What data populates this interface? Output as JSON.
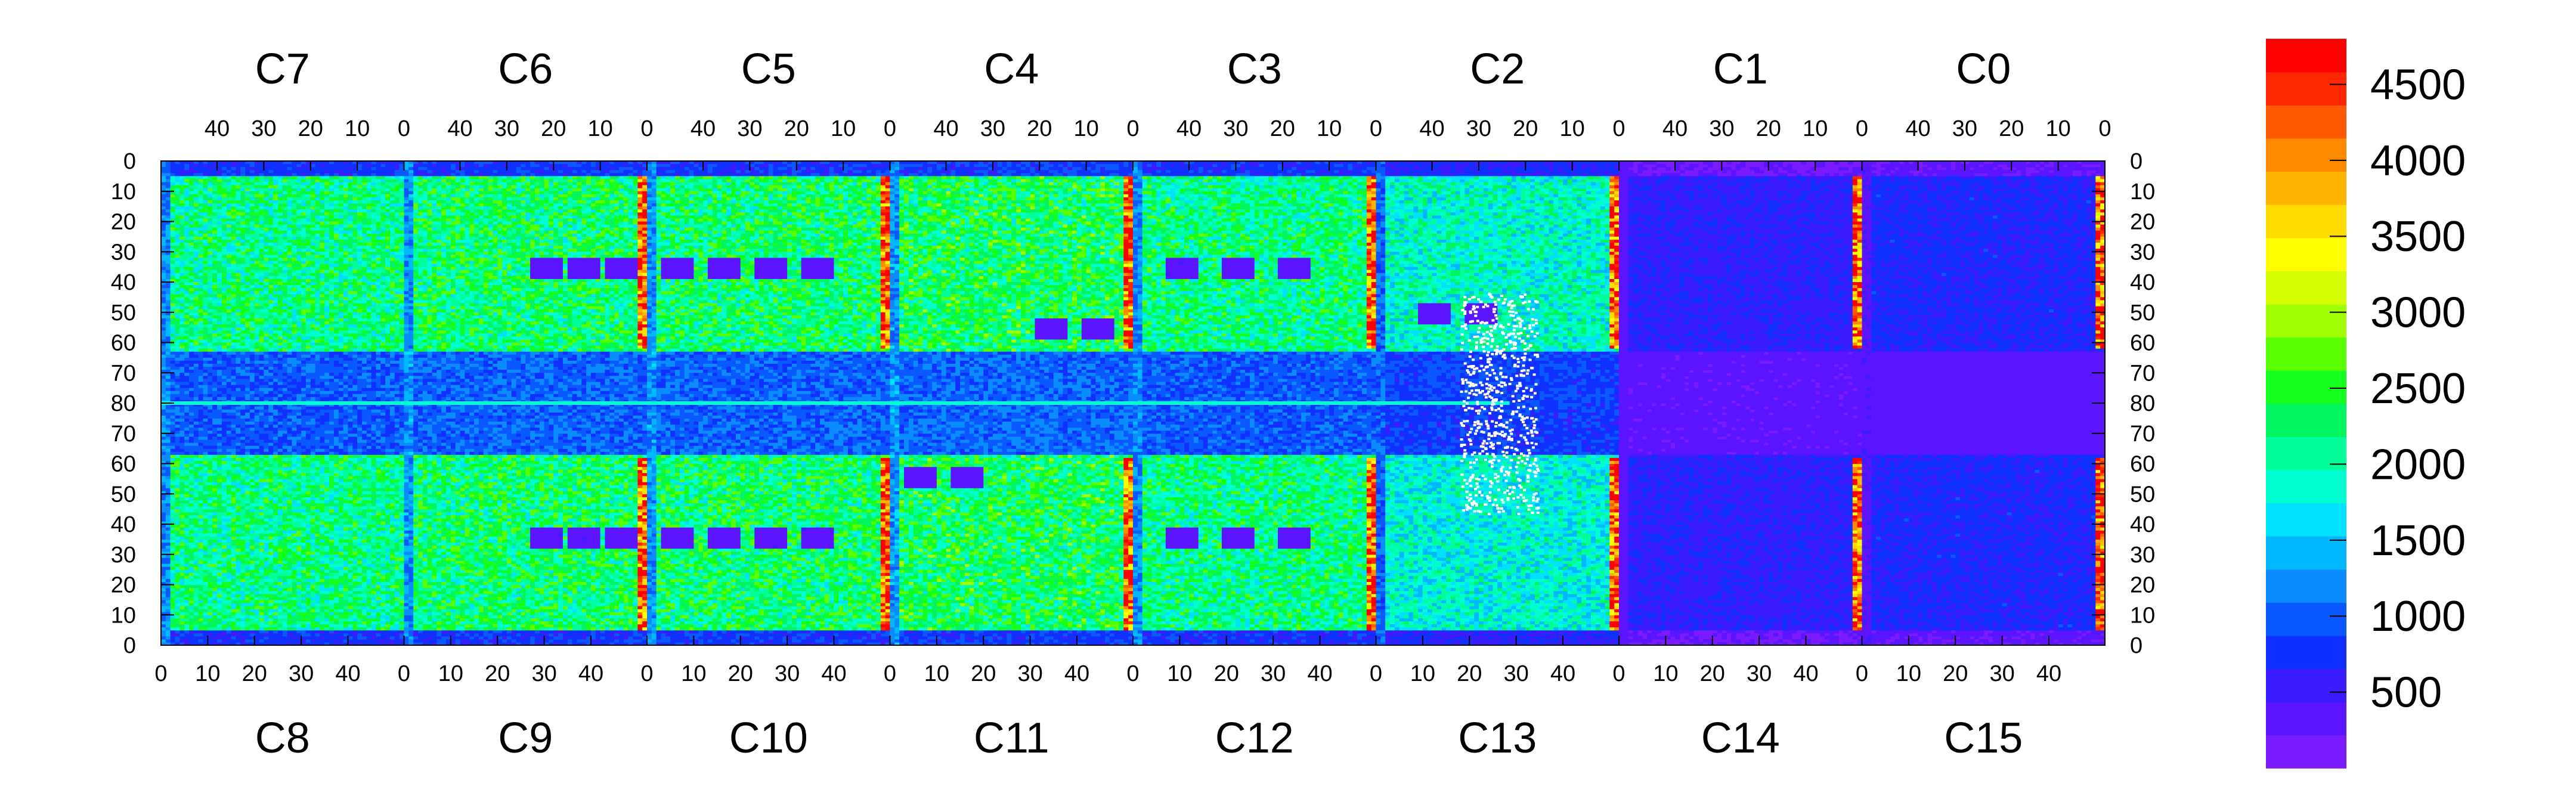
{
  "chart_data": {
    "type": "heatmap",
    "title": "",
    "top_chip_labels": [
      "C7",
      "C6",
      "C5",
      "C4",
      "C3",
      "C2",
      "C1",
      "C0"
    ],
    "bottom_chip_labels": [
      "C8",
      "C9",
      "C10",
      "C11",
      "C12",
      "C13",
      "C14",
      "C15"
    ],
    "top_axis_ticks": [
      "40",
      "30",
      "20",
      "10",
      "0"
    ],
    "bottom_axis_ticks": [
      "0",
      "10",
      "20",
      "30",
      "40"
    ],
    "y_axis_ticks": [
      "0",
      "10",
      "20",
      "30",
      "40",
      "50",
      "60",
      "70",
      "80",
      "70",
      "60",
      "50",
      "40",
      "30",
      "20",
      "10",
      "0"
    ],
    "x_per_chip_range": [
      0,
      52
    ],
    "y_range_top": [
      0,
      80
    ],
    "y_range_bottom": [
      80,
      0
    ],
    "colorbar": {
      "min": 0,
      "max": 4800,
      "tick_labels": [
        "500",
        "1000",
        "1500",
        "2000",
        "2500",
        "3000",
        "3500",
        "4000",
        "4500"
      ],
      "tick_values": [
        500,
        1000,
        1500,
        2000,
        2500,
        3000,
        3500,
        4000,
        4500
      ],
      "colors": [
        "#7a1bff",
        "#5a14ff",
        "#3a1cff",
        "#1030ff",
        "#0a58ff",
        "#0a8cff",
        "#00b8ff",
        "#00e0ff",
        "#00ffd0",
        "#00ff9a",
        "#00f560",
        "#14ff1e",
        "#5aff00",
        "#a0ff00",
        "#d8ff00",
        "#ffff00",
        "#ffdc00",
        "#ffb400",
        "#ff8a00",
        "#ff5a00",
        "#ff2800",
        "#ff0000"
      ]
    },
    "chips": [
      {
        "name": "C7",
        "base": 2150,
        "hot_column_right": false,
        "vacancies": []
      },
      {
        "name": "C6",
        "base": 2250,
        "hot_column_right": true,
        "vacancies": [
          [
            30,
            35
          ],
          [
            38,
            35
          ],
          [
            46,
            35
          ]
        ]
      },
      {
        "name": "C5",
        "base": 2250,
        "hot_column_right": true,
        "vacancies": [
          [
            6,
            35
          ],
          [
            16,
            35
          ],
          [
            26,
            35
          ],
          [
            36,
            35
          ]
        ]
      },
      {
        "name": "C4",
        "base": 2300,
        "hot_column_right": true,
        "vacancies": [
          [
            34,
            55
          ],
          [
            44,
            55
          ]
        ]
      },
      {
        "name": "C3",
        "base": 2150,
        "hot_column_right": true,
        "vacancies": [
          [
            10,
            35
          ],
          [
            22,
            35
          ],
          [
            34,
            35
          ]
        ]
      },
      {
        "name": "C2",
        "base": 1900,
        "hot_column_right": true,
        "vacancies": [
          [
            12,
            50
          ],
          [
            22,
            50
          ]
        ]
      },
      {
        "name": "C1",
        "base": 600,
        "hot_column_right": true,
        "vacancies": []
      },
      {
        "name": "C0",
        "base": 700,
        "hot_column_right": true,
        "vacancies": []
      },
      {
        "name": "C8",
        "base": 2150,
        "hot_column_right": false,
        "vacancies": []
      },
      {
        "name": "C9",
        "base": 2250,
        "hot_column_right": true,
        "vacancies": [
          [
            30,
            35
          ],
          [
            38,
            35
          ],
          [
            46,
            35
          ]
        ]
      },
      {
        "name": "C10",
        "base": 2250,
        "hot_column_right": true,
        "vacancies": [
          [
            6,
            35
          ],
          [
            16,
            35
          ],
          [
            26,
            35
          ],
          [
            36,
            35
          ]
        ]
      },
      {
        "name": "C11",
        "base": 2300,
        "hot_column_right": true,
        "vacancies": [
          [
            6,
            55
          ],
          [
            16,
            55
          ]
        ]
      },
      {
        "name": "C12",
        "base": 2150,
        "hot_column_right": true,
        "vacancies": [
          [
            10,
            35
          ],
          [
            22,
            35
          ],
          [
            34,
            35
          ]
        ]
      },
      {
        "name": "C13",
        "base": 1800,
        "hot_column_right": true,
        "vacancies": []
      },
      {
        "name": "C14",
        "base": 600,
        "hot_column_right": true,
        "vacancies": []
      },
      {
        "name": "C15",
        "base": 700,
        "hot_column_right": true,
        "vacancies": []
      }
    ]
  }
}
